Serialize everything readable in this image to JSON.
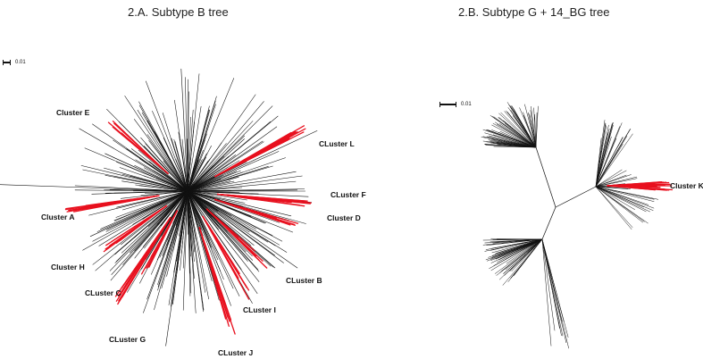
{
  "panel_a": {
    "title": "2.A. Subtype B tree",
    "scale_label": "0.01",
    "clusters": [
      {
        "key": "E",
        "label": "Cluster E"
      },
      {
        "key": "L",
        "label": "CLuster L"
      },
      {
        "key": "F",
        "label": "CLuster F"
      },
      {
        "key": "D",
        "label": "Cluster D"
      },
      {
        "key": "A",
        "label": "Cluster A"
      },
      {
        "key": "H",
        "label": "Cluster H"
      },
      {
        "key": "C",
        "label": "CLuster C"
      },
      {
        "key": "B",
        "label": "CLuster B"
      },
      {
        "key": "I",
        "label": "CLuster I"
      },
      {
        "key": "G",
        "label": "CLuster G"
      },
      {
        "key": "J",
        "label": "CLuster J"
      }
    ]
  },
  "panel_b": {
    "title": "2.B. Subtype G + 14_BG tree",
    "scale_label": "0.01",
    "clusters": [
      {
        "key": "K",
        "label": "Cluster K"
      }
    ]
  },
  "colors": {
    "branch": "#111111",
    "cluster_highlight": "#e8101e"
  }
}
